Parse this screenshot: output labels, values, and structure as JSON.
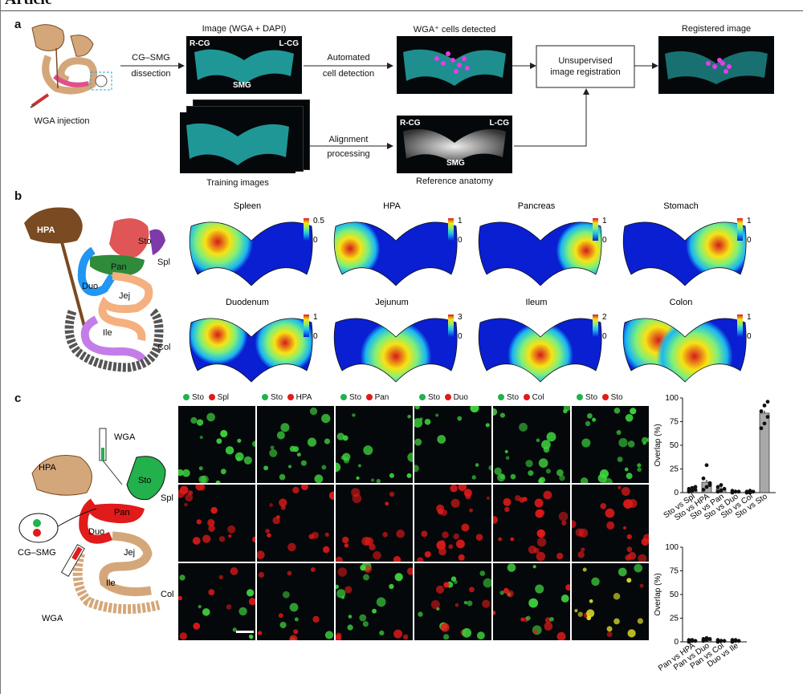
{
  "header": {
    "title": "Article"
  },
  "panel_a": {
    "letter": "a",
    "injection": "WGA injection",
    "dissection": [
      "CG–SMG",
      "dissection"
    ],
    "image_title": "Image (WGA + DAPI)",
    "rcg": "R-CG",
    "lcg": "L-CG",
    "smg": "SMG",
    "automated": [
      "Automated",
      "cell detection"
    ],
    "detected_title": "WGA⁺ cells detected",
    "unsupervised": [
      "Unsupervised",
      "image registration"
    ],
    "registered_title": "Registered image",
    "training": "Training images",
    "alignment": [
      "Alignment",
      "processing"
    ],
    "reference": "Reference anatomy"
  },
  "panel_b": {
    "letter": "b",
    "organs": {
      "hpa": "HPA",
      "sto": "Sto",
      "spl": "Spl",
      "pan": "Pan",
      "duo": "Duo",
      "jej": "Jej",
      "ile": "Ile",
      "col": "Col"
    },
    "heatmaps": [
      {
        "title": "Spleen",
        "max": "0.5",
        "min": "0"
      },
      {
        "title": "HPA",
        "max": "1",
        "min": "0"
      },
      {
        "title": "Pancreas",
        "max": "1",
        "min": "0"
      },
      {
        "title": "Stomach",
        "max": "1",
        "min": "0"
      },
      {
        "title": "Duodenum",
        "max": "1",
        "min": "0"
      },
      {
        "title": "Jejunum",
        "max": "3",
        "min": "0"
      },
      {
        "title": "Ileum",
        "max": "2",
        "min": "0"
      },
      {
        "title": "Colon",
        "max": "1",
        "min": "0"
      }
    ]
  },
  "panel_c": {
    "letter": "c",
    "organs": {
      "wga_top": "WGA",
      "hpa": "HPA",
      "sto": "Sto",
      "spl": "Spl",
      "pan": "Pan",
      "duo": "Duo",
      "jej": "Jej",
      "ile": "Ile",
      "col": "Col",
      "cgsmg": "CG–SMG",
      "wga_bottom": "WGA"
    },
    "columns": [
      {
        "green": "Sto",
        "red": "Spl"
      },
      {
        "green": "Sto",
        "red": "HPA"
      },
      {
        "green": "Sto",
        "red": "Pan"
      },
      {
        "green": "Sto",
        "red": "Duo"
      },
      {
        "green": "Sto",
        "red": "Col"
      },
      {
        "green": "Sto",
        "red": "Sto"
      }
    ]
  },
  "chart_data": [
    {
      "type": "bar",
      "ylabel": "Overlap (%)",
      "ylim": [
        0,
        100
      ],
      "yticks": [
        "0",
        "25",
        "50",
        "75",
        "100"
      ],
      "categories": [
        "Sto vs Spl",
        "Sto vs HPA",
        "Sto vs Pan",
        "Sto vs Duo",
        "Sto vs Col",
        "Sto vs Sto"
      ],
      "values": [
        3,
        11,
        4,
        1,
        1,
        84
      ],
      "points": [
        [
          1,
          2,
          3,
          4,
          5,
          6
        ],
        [
          3,
          6,
          10,
          15,
          29,
          8
        ],
        [
          1,
          2,
          4,
          6,
          8
        ],
        [
          0,
          1,
          1,
          2
        ],
        [
          0,
          0,
          1,
          1,
          2
        ],
        [
          68,
          73,
          80,
          86,
          92,
          96
        ]
      ],
      "colors": {
        "bar": "#a8a8a8",
        "highlight": "#777777",
        "point": "#111111"
      }
    },
    {
      "type": "bar",
      "ylabel": "Overlap (%)",
      "ylim": [
        0,
        100
      ],
      "yticks": [
        "0",
        "25",
        "50",
        "75",
        "100"
      ],
      "categories": [
        "Pan vs HPA",
        "Pan vs Duo",
        "Pan vs Col",
        "Duo vs Ile"
      ],
      "values": [
        1,
        2,
        1,
        1
      ],
      "points": [
        [
          0,
          1,
          1,
          2,
          2
        ],
        [
          1,
          2,
          3,
          3,
          4
        ],
        [
          0,
          1,
          1,
          2
        ],
        [
          0,
          1,
          1,
          2,
          2
        ]
      ],
      "colors": {
        "bar": "#a8a8a8",
        "point": "#111111"
      }
    }
  ],
  "colors": {
    "cyan": "#2ac7c7",
    "magenta": "#e93be9",
    "green": "#22b14c",
    "red": "#e11a1a",
    "tan": "#d4a77a",
    "brown": "#7a4a22"
  }
}
